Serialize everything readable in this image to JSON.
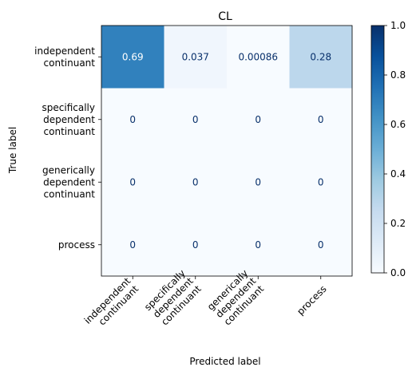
{
  "chart_data": {
    "type": "heatmap",
    "title": "CL",
    "xlabel": "Predicted label",
    "ylabel": "True label",
    "row_labels": [
      [
        "independent",
        "continuant"
      ],
      [
        "specifically",
        "dependent",
        "continuant"
      ],
      [
        "generically",
        "dependent",
        "continuant"
      ],
      [
        "process"
      ]
    ],
    "col_labels": [
      [
        "independent",
        "continuant"
      ],
      [
        "specifically",
        "dependent",
        "continuant"
      ],
      [
        "generically",
        "dependent",
        "continuant"
      ],
      [
        "process"
      ]
    ],
    "values": [
      [
        0.69,
        0.037,
        0.00086,
        0.28
      ],
      [
        0,
        0,
        0,
        0
      ],
      [
        0,
        0,
        0,
        0
      ],
      [
        0,
        0,
        0,
        0
      ]
    ],
    "cell_text": [
      [
        "0.69",
        "0.037",
        "0.00086",
        "0.28"
      ],
      [
        "0",
        "0",
        "0",
        "0"
      ],
      [
        "0",
        "0",
        "0",
        "0"
      ],
      [
        "0",
        "0",
        "0",
        "0"
      ]
    ],
    "colorbar": {
      "range": [
        0.0,
        1.0
      ],
      "ticks": [
        0.0,
        0.2,
        0.4,
        0.6,
        0.8,
        1.0
      ],
      "tick_labels": [
        "0.0",
        "0.2",
        "0.4",
        "0.6",
        "0.8",
        "1.0"
      ],
      "colormap": "Blues",
      "stops": [
        "#f7fbff",
        "#deebf7",
        "#c6dbef",
        "#9ecae1",
        "#6baed6",
        "#4292c6",
        "#2171b5",
        "#08519c",
        "#08306b"
      ]
    }
  }
}
